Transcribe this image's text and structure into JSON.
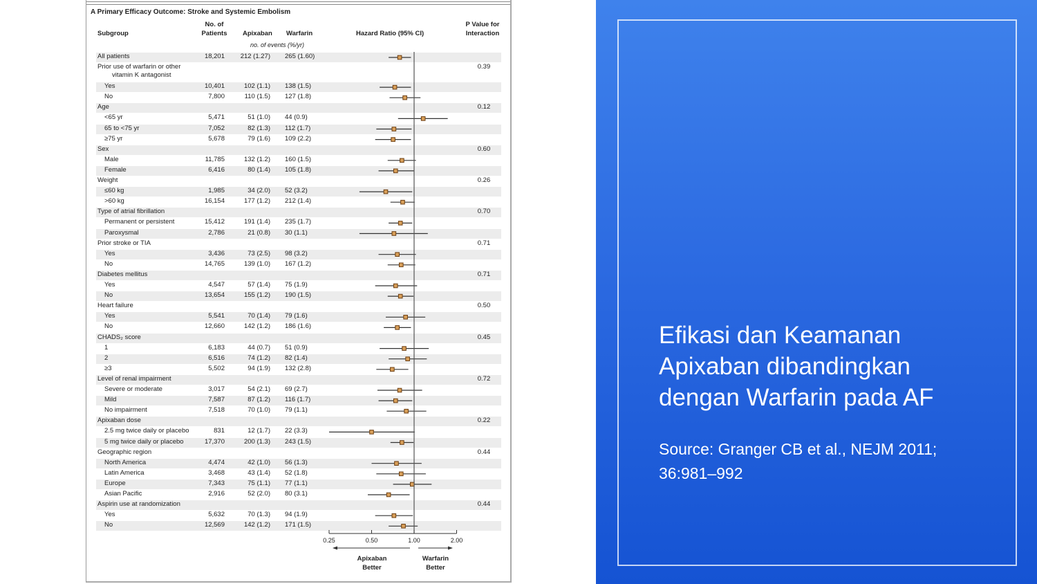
{
  "figure": {
    "panel_title": "A  Primary Efficacy Outcome: Stroke and Systemic Embolism",
    "headers": {
      "subgroup": "Subgroup",
      "patients_1": "No. of",
      "patients_2": "Patients",
      "apixaban": "Apixaban",
      "warfarin": "Warfarin",
      "events_note": "no. of events (%/yr)",
      "hr": "Hazard Ratio (95% CI)",
      "p_1": "P Value for",
      "p_2": "Interaction"
    }
  },
  "chart_data": {
    "type": "forest",
    "x_scale": "log",
    "xlim": [
      0.25,
      2.0
    ],
    "x_ticks": [
      "0.25",
      "0.50",
      "1.00",
      "2.00"
    ],
    "reference_line": 1.0,
    "left_arrow_label": [
      "Apixaban",
      "Better"
    ],
    "right_arrow_label": [
      "Warfarin",
      "Better"
    ],
    "marker_color": "#d9a05a",
    "rows": [
      {
        "label": "All patients",
        "indent": 0,
        "patients": "18,201",
        "apixaban": "212 (1.27)",
        "warfarin": "265 (1.60)",
        "hr": 0.79,
        "lo": 0.66,
        "hi": 0.95
      },
      {
        "lines": [
          "Prior use of warfarin or other",
          "vitamin K antagonist"
        ],
        "indent": 0,
        "p": "0.39"
      },
      {
        "label": "Yes",
        "indent": 1,
        "patients": "10,401",
        "apixaban": "102 (1.1)",
        "warfarin": "138 (1.5)",
        "hr": 0.73,
        "lo": 0.57,
        "hi": 0.95
      },
      {
        "label": "No",
        "indent": 1,
        "patients": "7,800",
        "apixaban": "110 (1.5)",
        "warfarin": "127 (1.8)",
        "hr": 0.86,
        "lo": 0.67,
        "hi": 1.11
      },
      {
        "label": "Age",
        "indent": 0,
        "p": "0.12"
      },
      {
        "label": "<65 yr",
        "indent": 1,
        "patients": "5,471",
        "apixaban": "51 (1.0)",
        "warfarin": "44 (0.9)",
        "hr": 1.16,
        "lo": 0.77,
        "hi": 1.73
      },
      {
        "label": "65 to <75 yr",
        "indent": 1,
        "patients": "7,052",
        "apixaban": "82 (1.3)",
        "warfarin": "112 (1.7)",
        "hr": 0.72,
        "lo": 0.54,
        "hi": 0.96
      },
      {
        "label": "≥75 yr",
        "indent": 1,
        "patients": "5,678",
        "apixaban": "79 (1.6)",
        "warfarin": "109 (2.2)",
        "hr": 0.71,
        "lo": 0.53,
        "hi": 0.95
      },
      {
        "label": "Sex",
        "indent": 0,
        "p": "0.60"
      },
      {
        "label": "Male",
        "indent": 1,
        "patients": "11,785",
        "apixaban": "132 (1.2)",
        "warfarin": "160 (1.5)",
        "hr": 0.82,
        "lo": 0.65,
        "hi": 1.03
      },
      {
        "label": "Female",
        "indent": 1,
        "patients": "6,416",
        "apixaban": "80 (1.4)",
        "warfarin": "105 (1.8)",
        "hr": 0.74,
        "lo": 0.56,
        "hi": 1.0
      },
      {
        "label": "Weight",
        "indent": 0,
        "p": "0.26"
      },
      {
        "label": "≤60 kg",
        "indent": 1,
        "patients": "1,985",
        "apixaban": "34 (2.0)",
        "warfarin": "52 (3.2)",
        "hr": 0.63,
        "lo": 0.41,
        "hi": 0.97
      },
      {
        "label": ">60 kg",
        "indent": 1,
        "patients": "16,154",
        "apixaban": "177 (1.2)",
        "warfarin": "212 (1.4)",
        "hr": 0.83,
        "lo": 0.68,
        "hi": 1.01
      },
      {
        "label": "Type of atrial fibrillation",
        "indent": 0,
        "p": "0.70"
      },
      {
        "label": "Permanent or persistent",
        "indent": 1,
        "patients": "15,412",
        "apixaban": "191 (1.4)",
        "warfarin": "235 (1.7)",
        "hr": 0.8,
        "lo": 0.66,
        "hi": 0.97
      },
      {
        "label": "Paroxysmal",
        "indent": 1,
        "patients": "2,786",
        "apixaban": "21 (0.8)",
        "warfarin": "30 (1.1)",
        "hr": 0.72,
        "lo": 0.41,
        "hi": 1.25
      },
      {
        "label": "Prior stroke or TIA",
        "indent": 0,
        "p": "0.71"
      },
      {
        "label": "Yes",
        "indent": 1,
        "patients": "3,436",
        "apixaban": "73 (2.5)",
        "warfarin": "98 (3.2)",
        "hr": 0.76,
        "lo": 0.56,
        "hi": 1.03
      },
      {
        "label": "No",
        "indent": 1,
        "patients": "14,765",
        "apixaban": "139 (1.0)",
        "warfarin": "167 (1.2)",
        "hr": 0.81,
        "lo": 0.65,
        "hi": 1.02
      },
      {
        "label": "Diabetes mellitus",
        "indent": 0,
        "p": "0.71"
      },
      {
        "label": "Yes",
        "indent": 1,
        "patients": "4,547",
        "apixaban": "57 (1.4)",
        "warfarin": "75 (1.9)",
        "hr": 0.74,
        "lo": 0.53,
        "hi": 1.05
      },
      {
        "label": "No",
        "indent": 1,
        "patients": "13,654",
        "apixaban": "155 (1.2)",
        "warfarin": "190 (1.5)",
        "hr": 0.8,
        "lo": 0.65,
        "hi": 0.99
      },
      {
        "label": "Heart failure",
        "indent": 0,
        "p": "0.50"
      },
      {
        "label": "Yes",
        "indent": 1,
        "patients": "5,541",
        "apixaban": "70 (1.4)",
        "warfarin": "79 (1.6)",
        "hr": 0.87,
        "lo": 0.63,
        "hi": 1.2
      },
      {
        "label": "No",
        "indent": 1,
        "patients": "12,660",
        "apixaban": "142 (1.2)",
        "warfarin": "186 (1.6)",
        "hr": 0.76,
        "lo": 0.61,
        "hi": 0.95
      },
      {
        "label": "CHADS₂ score",
        "indent": 0,
        "p": "0.45"
      },
      {
        "label": "1",
        "indent": 1,
        "patients": "6,183",
        "apixaban": "44 (0.7)",
        "warfarin": "51 (0.9)",
        "hr": 0.85,
        "lo": 0.57,
        "hi": 1.27
      },
      {
        "label": "2",
        "indent": 1,
        "patients": "6,516",
        "apixaban": "74 (1.2)",
        "warfarin": "82 (1.4)",
        "hr": 0.9,
        "lo": 0.66,
        "hi": 1.23
      },
      {
        "label": "≥3",
        "indent": 1,
        "patients": "5,502",
        "apixaban": "94 (1.9)",
        "warfarin": "132 (2.8)",
        "hr": 0.7,
        "lo": 0.54,
        "hi": 0.91
      },
      {
        "label": "Level of renal impairment",
        "indent": 0,
        "p": "0.72"
      },
      {
        "label": "Severe or moderate",
        "indent": 1,
        "patients": "3,017",
        "apixaban": "54 (2.1)",
        "warfarin": "69 (2.7)",
        "hr": 0.79,
        "lo": 0.55,
        "hi": 1.14
      },
      {
        "label": "Mild",
        "indent": 1,
        "patients": "7,587",
        "apixaban": "87 (1.2)",
        "warfarin": "116 (1.7)",
        "hr": 0.74,
        "lo": 0.56,
        "hi": 0.97
      },
      {
        "label": "No impairment",
        "indent": 1,
        "patients": "7,518",
        "apixaban": "70 (1.0)",
        "warfarin": "79 (1.1)",
        "hr": 0.88,
        "lo": 0.64,
        "hi": 1.22
      },
      {
        "label": "Apixaban dose",
        "indent": 0,
        "p": "0.22"
      },
      {
        "label": "2.5 mg twice daily or placebo",
        "indent": 1,
        "patients": "831",
        "apixaban": "12 (1.7)",
        "warfarin": "22 (3.3)",
        "hr": 0.5,
        "lo": 0.25,
        "hi": 1.01
      },
      {
        "label": "5 mg twice daily or placebo",
        "indent": 1,
        "patients": "17,370",
        "apixaban": "200 (1.3)",
        "warfarin": "243 (1.5)",
        "hr": 0.82,
        "lo": 0.68,
        "hi": 0.99
      },
      {
        "label": "Geographic region",
        "indent": 0,
        "p": "0.44"
      },
      {
        "label": "North America",
        "indent": 1,
        "patients": "4,474",
        "apixaban": "42 (1.0)",
        "warfarin": "56 (1.3)",
        "hr": 0.75,
        "lo": 0.5,
        "hi": 1.13
      },
      {
        "label": "Latin America",
        "indent": 1,
        "patients": "3,468",
        "apixaban": "43 (1.4)",
        "warfarin": "52 (1.8)",
        "hr": 0.81,
        "lo": 0.54,
        "hi": 1.21
      },
      {
        "label": "Europe",
        "indent": 1,
        "patients": "7,343",
        "apixaban": "75 (1.1)",
        "warfarin": "77 (1.1)",
        "hr": 0.97,
        "lo": 0.71,
        "hi": 1.33
      },
      {
        "label": "Asian Pacific",
        "indent": 1,
        "patients": "2,916",
        "apixaban": "52 (2.0)",
        "warfarin": "80 (3.1)",
        "hr": 0.66,
        "lo": 0.47,
        "hi": 0.93
      },
      {
        "label": "Aspirin use at randomization",
        "indent": 0,
        "p": "0.44"
      },
      {
        "label": "Yes",
        "indent": 1,
        "patients": "5,632",
        "apixaban": "70 (1.3)",
        "warfarin": "94 (1.9)",
        "hr": 0.72,
        "lo": 0.53,
        "hi": 0.98
      },
      {
        "label": "No",
        "indent": 1,
        "patients": "12,569",
        "apixaban": "142 (1.2)",
        "warfarin": "171 (1.5)",
        "hr": 0.84,
        "lo": 0.66,
        "hi": 1.06
      }
    ]
  },
  "slide": {
    "title": "Efikasi dan Keamanan Apixaban dibandingkan dengan Warfarin pada AF",
    "source": "Source: Granger CB et al., NEJM 2011; 36:981–992",
    "panel_color": "#2a68e0"
  }
}
